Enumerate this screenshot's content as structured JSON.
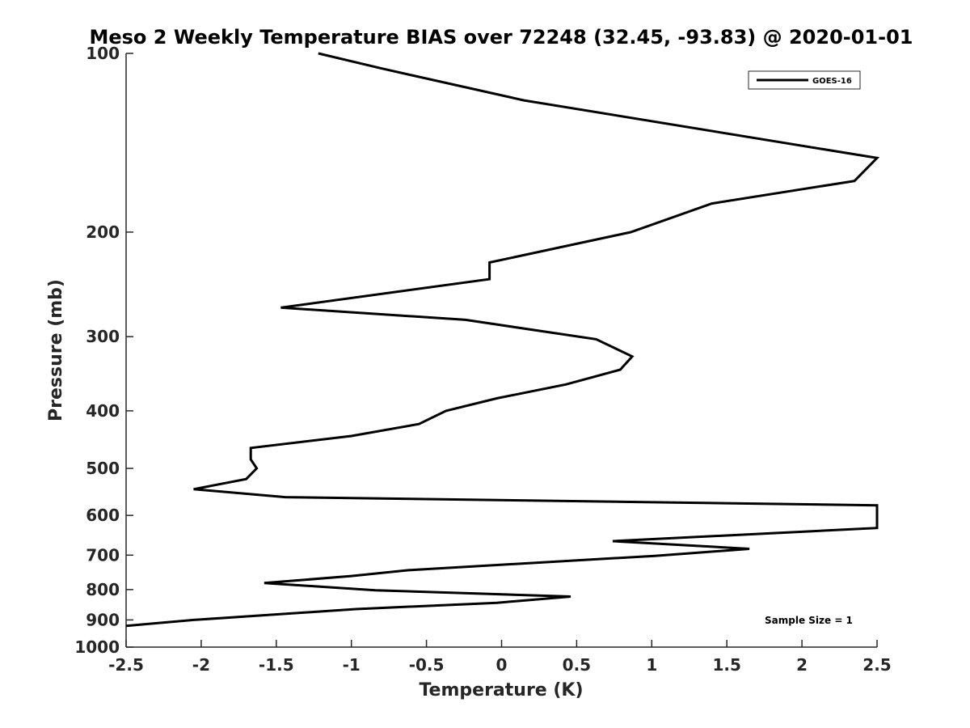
{
  "chart_data": {
    "type": "line",
    "title": "Meso 2 Weekly Temperature BIAS over 72248 (32.45, -93.83) @ 2020-01-01",
    "xlabel": "Temperature (K)",
    "ylabel": "Pressure (mb)",
    "xlim": [
      -2.5,
      2.5
    ],
    "ylim": [
      100,
      1000
    ],
    "y_scale": "log",
    "y_reversed": true,
    "x_ticks": [
      -2.5,
      -2,
      -1.5,
      -1,
      -0.5,
      0,
      0.5,
      1,
      1.5,
      2,
      2.5
    ],
    "x_tick_labels": [
      "-2.5",
      "-2",
      "-1.5",
      "-1",
      "-0.5",
      "0",
      "0.5",
      "1",
      "1.5",
      "2",
      "2.5"
    ],
    "y_ticks": [
      100,
      200,
      300,
      400,
      500,
      600,
      700,
      800,
      900,
      1000
    ],
    "y_tick_labels": [
      "100",
      "200",
      "300",
      "400",
      "500",
      "600",
      "700",
      "800",
      "900",
      "1000"
    ],
    "grid": false,
    "legend_position": "top-right",
    "annotation": "Sample Size = 1",
    "series": [
      {
        "name": "GOES-16",
        "color": "#000000",
        "points": [
          {
            "x": -1.22,
            "p": 100
          },
          {
            "x": -0.8,
            "p": 106
          },
          {
            "x": 0.15,
            "p": 120
          },
          {
            "x": 2.5,
            "p": 150
          },
          {
            "x": 2.35,
            "p": 164
          },
          {
            "x": 1.4,
            "p": 179
          },
          {
            "x": 0.86,
            "p": 200
          },
          {
            "x": -0.08,
            "p": 225
          },
          {
            "x": -0.08,
            "p": 240
          },
          {
            "x": -1.47,
            "p": 268
          },
          {
            "x": -0.24,
            "p": 281
          },
          {
            "x": 0.63,
            "p": 303
          },
          {
            "x": 0.87,
            "p": 324
          },
          {
            "x": 0.79,
            "p": 341
          },
          {
            "x": 0.43,
            "p": 361
          },
          {
            "x": -0.03,
            "p": 381
          },
          {
            "x": -0.37,
            "p": 400
          },
          {
            "x": -0.55,
            "p": 421
          },
          {
            "x": -1.0,
            "p": 441
          },
          {
            "x": -1.67,
            "p": 462
          },
          {
            "x": -1.67,
            "p": 483
          },
          {
            "x": -1.63,
            "p": 500
          },
          {
            "x": -1.7,
            "p": 521
          },
          {
            "x": -2.05,
            "p": 542
          },
          {
            "x": -1.44,
            "p": 559
          },
          {
            "x": 2.5,
            "p": 577
          },
          {
            "x": 2.5,
            "p": 630
          },
          {
            "x": 0.74,
            "p": 663
          },
          {
            "x": 1.65,
            "p": 683
          },
          {
            "x": 1.02,
            "p": 702
          },
          {
            "x": -0.62,
            "p": 742
          },
          {
            "x": -1.0,
            "p": 759
          },
          {
            "x": -1.58,
            "p": 780
          },
          {
            "x": -0.84,
            "p": 802
          },
          {
            "x": 0.46,
            "p": 822
          },
          {
            "x": -0.03,
            "p": 842
          },
          {
            "x": -0.97,
            "p": 863
          },
          {
            "x": -2.05,
            "p": 900
          },
          {
            "x": -2.5,
            "p": 921
          }
        ]
      }
    ]
  }
}
